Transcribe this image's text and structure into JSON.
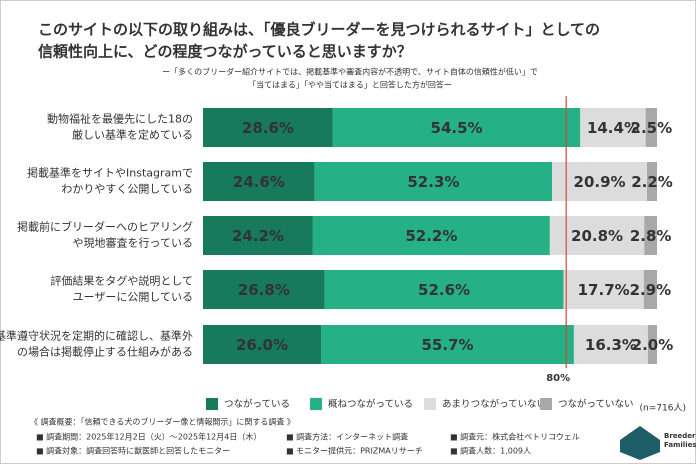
{
  "chart_data": {
    "type": "bar",
    "orientation": "horizontal",
    "stacked": true,
    "title": [
      "このサイトの以下の取り組みは、「優良ブリーダーを見つけられるサイト」としての",
      "信頼性向上に、どの程度つながっていると思いますか？"
    ],
    "subtitle": [
      "ー「多くのブリーダー紹介サイトでは、掲載基準や審査内容が不透明で、サイト自体の信頼性が低い」で",
      "「当てはまる」「やや当てはまる」と回答した方が回答ー"
    ],
    "categories": [
      [
        "動物福祉を最優先にした18の",
        "厳しい基準を定めている"
      ],
      [
        "掲載基準をサイトやInstagramで",
        "わかりやすく公開している"
      ],
      [
        "掲載前にブリーダーへのヒアリング",
        "や現地審査を行っている"
      ],
      [
        "評価結果をタグや説明として",
        "ユーザーに公開している"
      ],
      [
        "基準遵守状況を定期的に確認し、基準外",
        "の場合は掲載停止する仕組みがある"
      ]
    ],
    "series": [
      {
        "name": "つながっている",
        "color": "#177a5a",
        "label_color": "#ffffff",
        "values": [
          28.6,
          24.6,
          24.2,
          26.8,
          26.0
        ],
        "value_labels": [
          "28.6%",
          "24.6%",
          "24.2%",
          "26.8%",
          "26.0%"
        ]
      },
      {
        "name": "概ねつながっている",
        "color": "#25b185",
        "label_color": "#ffffff",
        "values": [
          54.5,
          52.3,
          52.2,
          52.6,
          55.7
        ],
        "value_labels": [
          "54.5%",
          "52.3%",
          "52.2%",
          "52.6%",
          "55.7%"
        ]
      },
      {
        "name": "あまりつながっていない",
        "color": "#dcdcdc",
        "label_color": "#555555",
        "values": [
          14.4,
          20.9,
          20.8,
          17.7,
          16.3
        ],
        "value_labels": [
          "14.4%",
          "20.9%",
          "20.8%",
          "17.7%",
          "16.3%"
        ]
      },
      {
        "name": "つながっていない",
        "color": "#a8a8a8",
        "label_color": "#555555",
        "values": [
          2.5,
          2.2,
          2.8,
          2.9,
          2.0
        ],
        "value_labels": [
          "2.5%",
          "2.2%",
          "2.8%",
          "2.9%",
          "2.0%"
        ]
      }
    ],
    "xlim": [
      0,
      100
    ],
    "reference_line": {
      "value": 80,
      "label": "80%",
      "color": "#d9453a"
    },
    "note": "(n=716人)",
    "footer": {
      "heading": "《 調査概要：「信頼できる犬のブリーダー像と情報開示」に関する調査 》",
      "rows": [
        [
          "■ 調査期間：2025年12月2日（火）～2025年12月4日（木）",
          "■ 調査方法：インターネット調査",
          "■ 調査元：株式会社ペトリコウェル"
        ],
        [
          "■ 調査対象：調査回答時に獣医師と回答したモニター",
          "■ モニター提供元：PRIZMAリサーチ",
          "■ 調査人数：1,009人"
        ]
      ]
    },
    "logo": [
      "Breeder",
      "Families"
    ]
  }
}
